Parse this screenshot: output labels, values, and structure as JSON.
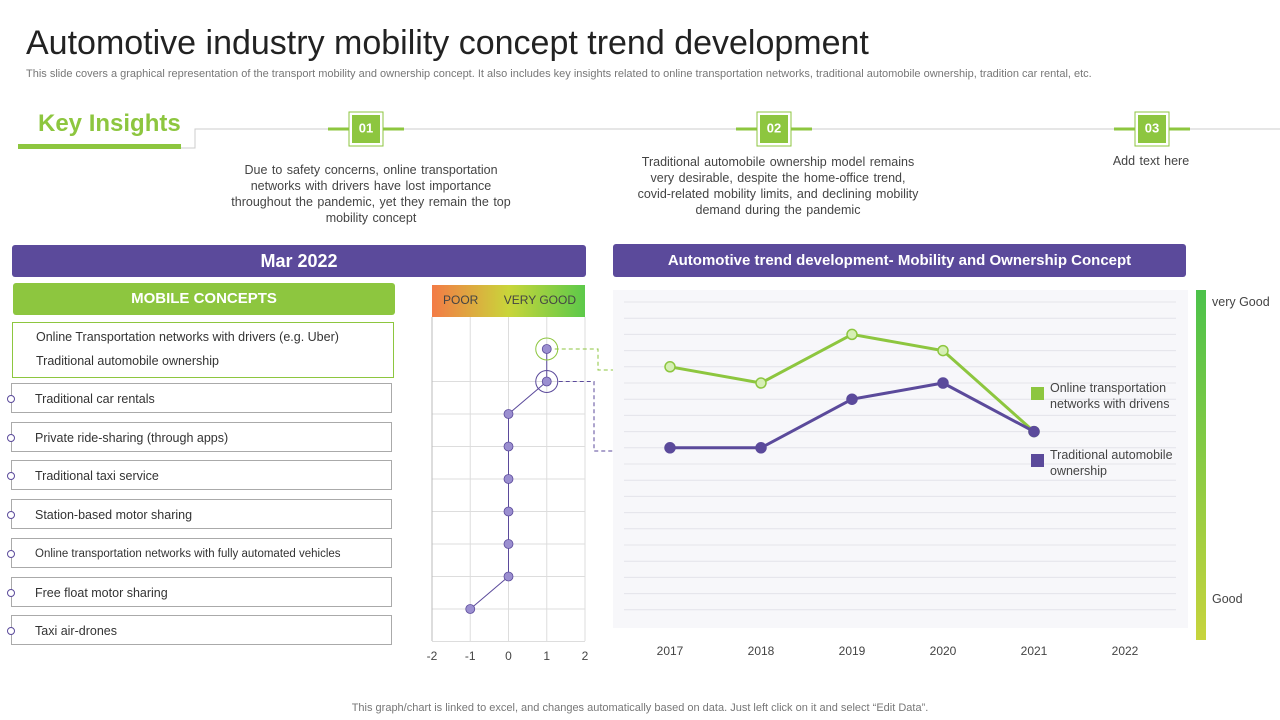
{
  "title": "Automotive industry mobility concept trend development",
  "subtitle": "This slide covers a graphical representation of the transport mobility and ownership concept. It also includes key insights related to online transportation networks, traditional automobile ownership, tradition car rental, etc.",
  "key_insights": {
    "heading": "Key Insights",
    "items": [
      {
        "number": "01",
        "text": "Due to safety concerns, online transportation networks with drivers have lost importance throughout the pandemic, yet they remain the top mobility concept"
      },
      {
        "number": "02",
        "text": "Traditional automobile ownership model remains very desirable, despite the home-office trend, covid-related mobility limits, and declining mobility demand during the pandemic"
      },
      {
        "number": "03",
        "text": "Add text here"
      }
    ]
  },
  "left_panel": {
    "heading": "Mar 2022",
    "subheading": "MOBILE CONCEPTS"
  },
  "chart_data": [
    {
      "type": "dot",
      "header_labels": [
        "POOR",
        "VERY GOOD"
      ],
      "categories": [
        "Online Transportation networks with drivers (e.g. Uber)",
        "Traditional automobile ownership",
        "Traditional car rentals",
        "Private ride-sharing (through apps)",
        "Traditional taxi service",
        "Station-based motor sharing",
        "Online transportation networks with fully automated vehicles",
        "Free float motor sharing",
        "Taxi air-drones"
      ],
      "values": [
        1,
        1,
        0,
        0,
        0,
        0,
        0,
        0,
        -1
      ],
      "color": "#9b8fd0",
      "xlim": [
        -2,
        2
      ],
      "xticks": [
        -2,
        -1,
        0,
        1,
        2
      ],
      "grid": true
    },
    {
      "type": "line",
      "title": "Automotive trend development- Mobility and Ownership Concept",
      "categories": [
        "2017",
        "2018",
        "2019",
        "2020",
        "2021",
        "2022"
      ],
      "series": [
        {
          "name": "Online transportation networks with drivens",
          "color": "#8dc63f",
          "values": [
            16,
            15,
            18,
            17,
            12,
            null
          ]
        },
        {
          "name": "Traditional automobile ownership",
          "color": "#5b4a9b",
          "values": [
            11,
            11,
            14,
            15,
            12,
            null
          ]
        }
      ],
      "ylim": [
        0,
        20
      ],
      "grid": true,
      "scale_labels": [
        "very Good",
        "Good"
      ]
    }
  ],
  "footer": "This graph/chart is linked to excel, and changes automatically based on data. Just left click on it and select “Edit Data”."
}
